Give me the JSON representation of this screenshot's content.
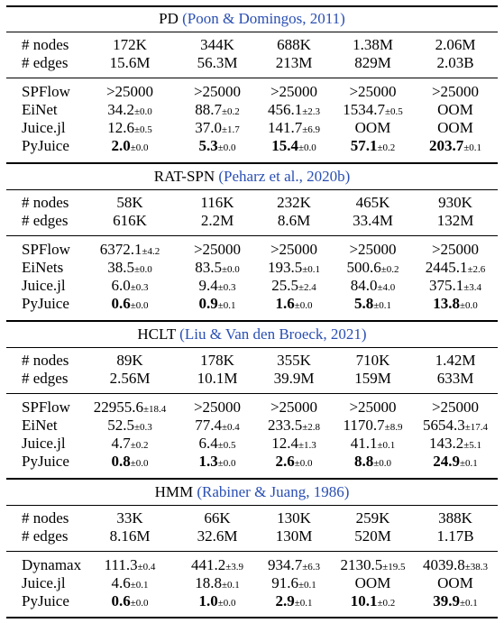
{
  "sections": [
    {
      "title": "PD",
      "citation": "(Poon & Domingos, 2011)",
      "nodes": [
        "172K",
        "344K",
        "688K",
        "1.38M",
        "2.06M"
      ],
      "edges": [
        "15.6M",
        "56.3M",
        "213M",
        "829M",
        "2.03B"
      ],
      "rows": [
        {
          "label": "SPFlow",
          "cells": [
            {
              "v": ">25000",
              "sd": ""
            },
            {
              "v": ">25000",
              "sd": ""
            },
            {
              "v": ">25000",
              "sd": ""
            },
            {
              "v": ">25000",
              "sd": ""
            },
            {
              "v": ">25000",
              "sd": ""
            }
          ]
        },
        {
          "label": "EiNet",
          "cells": [
            {
              "v": "34.2",
              "sd": "±0.0"
            },
            {
              "v": "88.7",
              "sd": "±0.2"
            },
            {
              "v": "456.1",
              "sd": "±2.3"
            },
            {
              "v": "1534.7",
              "sd": "±0.5"
            },
            {
              "v": "OOM",
              "sd": ""
            }
          ]
        },
        {
          "label": "Juice.jl",
          "cells": [
            {
              "v": "12.6",
              "sd": "±0.5"
            },
            {
              "v": "37.0",
              "sd": "±1.7"
            },
            {
              "v": "141.7",
              "sd": "±6.9"
            },
            {
              "v": "OOM",
              "sd": ""
            },
            {
              "v": "OOM",
              "sd": ""
            }
          ]
        },
        {
          "label": "PyJuice",
          "bold": true,
          "cells": [
            {
              "v": "2.0",
              "sd": "±0.0"
            },
            {
              "v": "5.3",
              "sd": "±0.0"
            },
            {
              "v": "15.4",
              "sd": "±0.0"
            },
            {
              "v": "57.1",
              "sd": "±0.2"
            },
            {
              "v": "203.7",
              "sd": "±0.1"
            }
          ]
        }
      ]
    },
    {
      "title": "RAT-SPN",
      "citation": "(Peharz et al., 2020b)",
      "nodes": [
        "58K",
        "116K",
        "232K",
        "465K",
        "930K"
      ],
      "edges": [
        "616K",
        "2.2M",
        "8.6M",
        "33.4M",
        "132M"
      ],
      "rows": [
        {
          "label": "SPFlow",
          "cells": [
            {
              "v": "6372.1",
              "sd": "±4.2"
            },
            {
              "v": ">25000",
              "sd": ""
            },
            {
              "v": ">25000",
              "sd": ""
            },
            {
              "v": ">25000",
              "sd": ""
            },
            {
              "v": ">25000",
              "sd": ""
            }
          ]
        },
        {
          "label": "EiNets",
          "cells": [
            {
              "v": "38.5",
              "sd": "±0.0"
            },
            {
              "v": "83.5",
              "sd": "±0.0"
            },
            {
              "v": "193.5",
              "sd": "±0.1"
            },
            {
              "v": "500.6",
              "sd": "±0.2"
            },
            {
              "v": "2445.1",
              "sd": "±2.6"
            }
          ]
        },
        {
          "label": "Juice.jl",
          "cells": [
            {
              "v": "6.0",
              "sd": "±0.3"
            },
            {
              "v": "9.4",
              "sd": "±0.3"
            },
            {
              "v": "25.5",
              "sd": "±2.4"
            },
            {
              "v": "84.0",
              "sd": "±4.0"
            },
            {
              "v": "375.1",
              "sd": "±3.4"
            }
          ]
        },
        {
          "label": "PyJuice",
          "bold": true,
          "cells": [
            {
              "v": "0.6",
              "sd": "±0.0"
            },
            {
              "v": "0.9",
              "sd": "±0.1"
            },
            {
              "v": "1.6",
              "sd": "±0.0"
            },
            {
              "v": "5.8",
              "sd": "±0.1"
            },
            {
              "v": "13.8",
              "sd": "±0.0"
            }
          ]
        }
      ]
    },
    {
      "title": "HCLT",
      "citation": "(Liu & Van den Broeck, 2021)",
      "nodes": [
        "89K",
        "178K",
        "355K",
        "710K",
        "1.42M"
      ],
      "edges": [
        "2.56M",
        "10.1M",
        "39.9M",
        "159M",
        "633M"
      ],
      "rows": [
        {
          "label": "SPFlow",
          "cells": [
            {
              "v": "22955.6",
              "sd": "±18.4"
            },
            {
              "v": ">25000",
              "sd": ""
            },
            {
              "v": ">25000",
              "sd": ""
            },
            {
              "v": ">25000",
              "sd": ""
            },
            {
              "v": ">25000",
              "sd": ""
            }
          ]
        },
        {
          "label": "EiNet",
          "cells": [
            {
              "v": "52.5",
              "sd": "±0.3"
            },
            {
              "v": "77.4",
              "sd": "±0.4"
            },
            {
              "v": "233.5",
              "sd": "±2.8"
            },
            {
              "v": "1170.7",
              "sd": "±8.9"
            },
            {
              "v": "5654.3",
              "sd": "±17.4"
            }
          ]
        },
        {
          "label": "Juice.jl",
          "cells": [
            {
              "v": "4.7",
              "sd": "±0.2"
            },
            {
              "v": "6.4",
              "sd": "±0.5"
            },
            {
              "v": "12.4",
              "sd": "±1.3"
            },
            {
              "v": "41.1",
              "sd": "±0.1"
            },
            {
              "v": "143.2",
              "sd": "±5.1"
            }
          ]
        },
        {
          "label": "PyJuice",
          "bold": true,
          "cells": [
            {
              "v": "0.8",
              "sd": "±0.0"
            },
            {
              "v": "1.3",
              "sd": "±0.0"
            },
            {
              "v": "2.6",
              "sd": "±0.0"
            },
            {
              "v": "8.8",
              "sd": "±0.0"
            },
            {
              "v": "24.9",
              "sd": "±0.1"
            }
          ]
        }
      ]
    },
    {
      "title": "HMM",
      "citation": "(Rabiner & Juang, 1986)",
      "nodes": [
        "33K",
        "66K",
        "130K",
        "259K",
        "388K"
      ],
      "edges": [
        "8.16M",
        "32.6M",
        "130M",
        "520M",
        "1.17B"
      ],
      "rows": [
        {
          "label": "Dynamax",
          "cells": [
            {
              "v": "111.3",
              "sd": "±0.4"
            },
            {
              "v": "441.2",
              "sd": "±3.9"
            },
            {
              "v": "934.7",
              "sd": "±6.3"
            },
            {
              "v": "2130.5",
              "sd": "±19.5"
            },
            {
              "v": "4039.8",
              "sd": "±38.3"
            }
          ]
        },
        {
          "label": "Juice.jl",
          "cells": [
            {
              "v": "4.6",
              "sd": "±0.1"
            },
            {
              "v": "18.8",
              "sd": "±0.1"
            },
            {
              "v": "91.6",
              "sd": "±0.1"
            },
            {
              "v": "OOM",
              "sd": ""
            },
            {
              "v": "OOM",
              "sd": ""
            }
          ]
        },
        {
          "label": "PyJuice",
          "bold": true,
          "cells": [
            {
              "v": "0.6",
              "sd": "±0.0"
            },
            {
              "v": "1.0",
              "sd": "±0.0"
            },
            {
              "v": "2.9",
              "sd": "±0.1"
            },
            {
              "v": "10.1",
              "sd": "±0.2"
            },
            {
              "v": "39.9",
              "sd": "±0.1"
            }
          ]
        }
      ]
    }
  ],
  "labels": {
    "nodes": "# nodes",
    "edges": "# edges"
  },
  "colors": {
    "citation": "#2a4fb3",
    "text": "#000000"
  }
}
